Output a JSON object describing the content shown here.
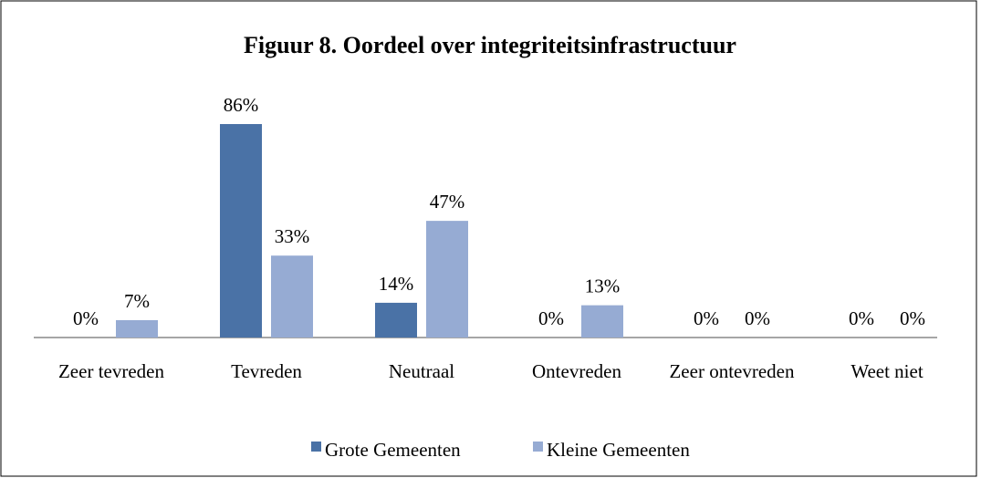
{
  "chart_data": {
    "type": "bar",
    "title": "Figuur 8. Oordeel over integriteitsinfrastructuur",
    "categories": [
      "Zeer tevreden",
      "Tevreden",
      "Neutraal",
      "Ontevreden",
      "Zeer ontevreden",
      "Weet niet"
    ],
    "series": [
      {
        "name": "Grote Gemeenten",
        "color": "#4a72a6",
        "values": [
          0,
          86,
          14,
          0,
          0,
          0
        ],
        "value_labels": [
          "0%",
          "86%",
          "14%",
          "0%",
          "0%",
          "0%"
        ]
      },
      {
        "name": "Kleine Gemeenten",
        "color": "#96abd3",
        "values": [
          7,
          33,
          47,
          13,
          0,
          0
        ],
        "value_labels": [
          "7%",
          "33%",
          "47%",
          "13%",
          "0%",
          "0%"
        ]
      }
    ],
    "legend": "bottom"
  }
}
